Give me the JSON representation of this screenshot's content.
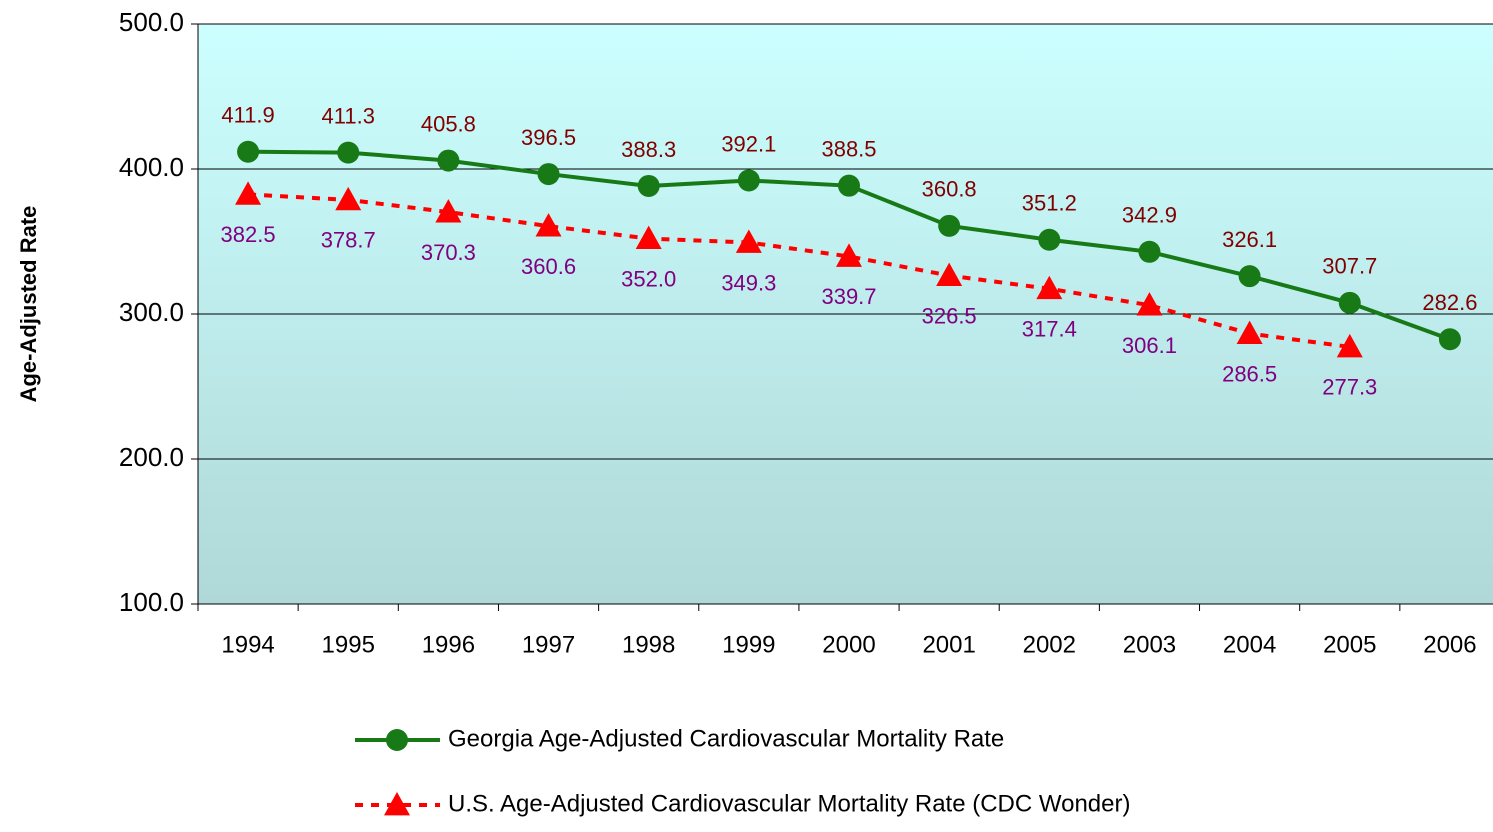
{
  "chart_data": {
    "type": "line",
    "y_axis_label": "Age-Adjusted Rate",
    "categories": [
      "1994",
      "1995",
      "1996",
      "1997",
      "1998",
      "1999",
      "2000",
      "2001",
      "2002",
      "2003",
      "2004",
      "2005",
      "2006"
    ],
    "series": [
      {
        "name": "Georgia Age-Adjusted Cardiovascular Mortality Rate",
        "color": "#177a17",
        "label_color": "#800000",
        "values": [
          411.9,
          411.3,
          405.8,
          396.5,
          388.3,
          392.1,
          388.5,
          360.8,
          351.2,
          342.9,
          326.1,
          307.7,
          282.6
        ]
      },
      {
        "name": "U.S. Age-Adjusted Cardiovascular Mortality Rate (CDC Wonder)",
        "color": "#ff0000",
        "label_color": "#800080",
        "values": [
          382.5,
          378.7,
          370.3,
          360.6,
          352.0,
          349.3,
          339.7,
          326.5,
          317.4,
          306.1,
          286.5,
          277.3,
          null
        ],
        "value_labels": [
          "382.5",
          "378.7",
          "370.3",
          "360.6",
          "352.0",
          "349.3",
          "339.7",
          "326.5",
          "317.4",
          "306.1",
          "286.5",
          "277.3",
          null
        ]
      }
    ],
    "ylim": [
      100,
      500
    ],
    "yticks": [
      {
        "value": 100,
        "label": "100.0"
      },
      {
        "value": 200,
        "label": "200.0"
      },
      {
        "value": 300,
        "label": "300.0"
      },
      {
        "value": 400,
        "label": "400.0"
      },
      {
        "value": 500,
        "label": "500.0"
      }
    ],
    "grid": true
  }
}
